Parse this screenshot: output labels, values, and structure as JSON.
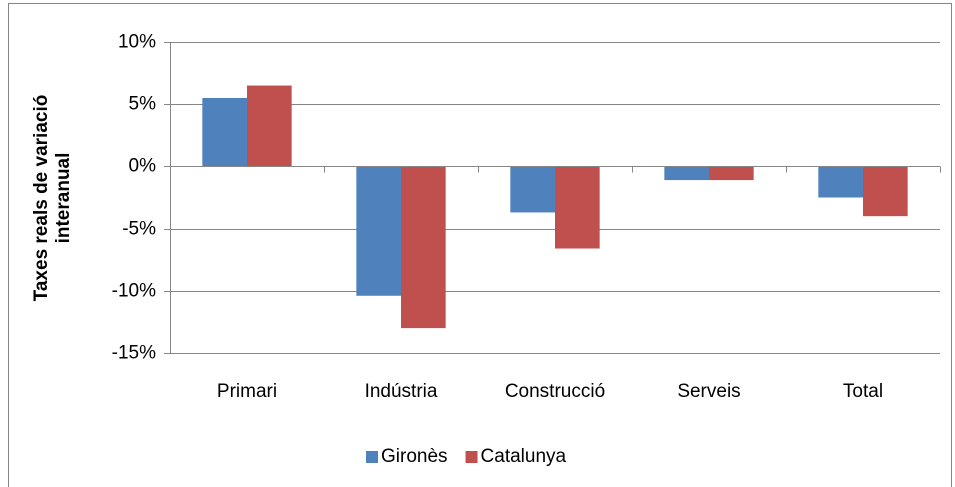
{
  "chart_data": {
    "type": "bar",
    "ylabel": [
      "Taxes reals de variació",
      "interanual"
    ],
    "categories": [
      "Primari",
      "Indústria",
      "Construcció",
      "Serveis",
      "Total"
    ],
    "series": [
      {
        "name": "Gironès",
        "color": "#4f81bd",
        "values": [
          5.5,
          -10.4,
          -3.7,
          -1.1,
          -2.5
        ]
      },
      {
        "name": "Catalunya",
        "color": "#c0504d",
        "values": [
          6.5,
          -13.0,
          -6.6,
          -1.1,
          -4.0
        ]
      }
    ],
    "ylim": [
      -15,
      10
    ],
    "yticks": [
      {
        "value": -15,
        "label": "-15%"
      },
      {
        "value": -10,
        "label": "-10%"
      },
      {
        "value": -5,
        "label": "-5%"
      },
      {
        "value": 0,
        "label": "0%"
      },
      {
        "value": 5,
        "label": "5%"
      },
      {
        "value": 10,
        "label": "10%"
      }
    ],
    "grid": true,
    "legend": "bottom"
  }
}
